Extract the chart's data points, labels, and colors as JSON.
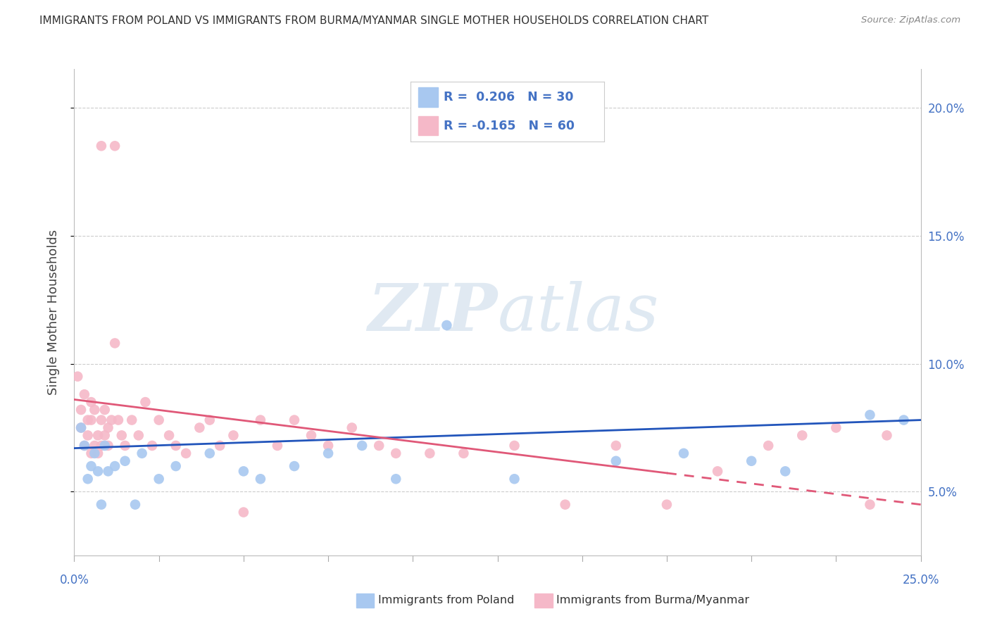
{
  "title": "IMMIGRANTS FROM POLAND VS IMMIGRANTS FROM BURMA/MYANMAR SINGLE MOTHER HOUSEHOLDS CORRELATION CHART",
  "source": "Source: ZipAtlas.com",
  "ylabel": "Single Mother Households",
  "xlim": [
    0,
    0.25
  ],
  "ylim": [
    0.025,
    0.215
  ],
  "yticks": [
    0.05,
    0.1,
    0.15,
    0.2
  ],
  "ytick_labels": [
    "5.0%",
    "10.0%",
    "15.0%",
    "20.0%"
  ],
  "r_poland": 0.206,
  "n_poland": 30,
  "r_burma": -0.165,
  "n_burma": 60,
  "color_poland": "#a8c8f0",
  "color_burma": "#f5b8c8",
  "color_poland_line": "#2255bb",
  "color_burma_line": "#e05878",
  "watermark_zip": "ZIP",
  "watermark_atlas": "atlas",
  "background_color": "#ffffff",
  "grid_color": "#cccccc",
  "legend_r_color": "#4472c4",
  "legend_text_color": "#333333"
}
